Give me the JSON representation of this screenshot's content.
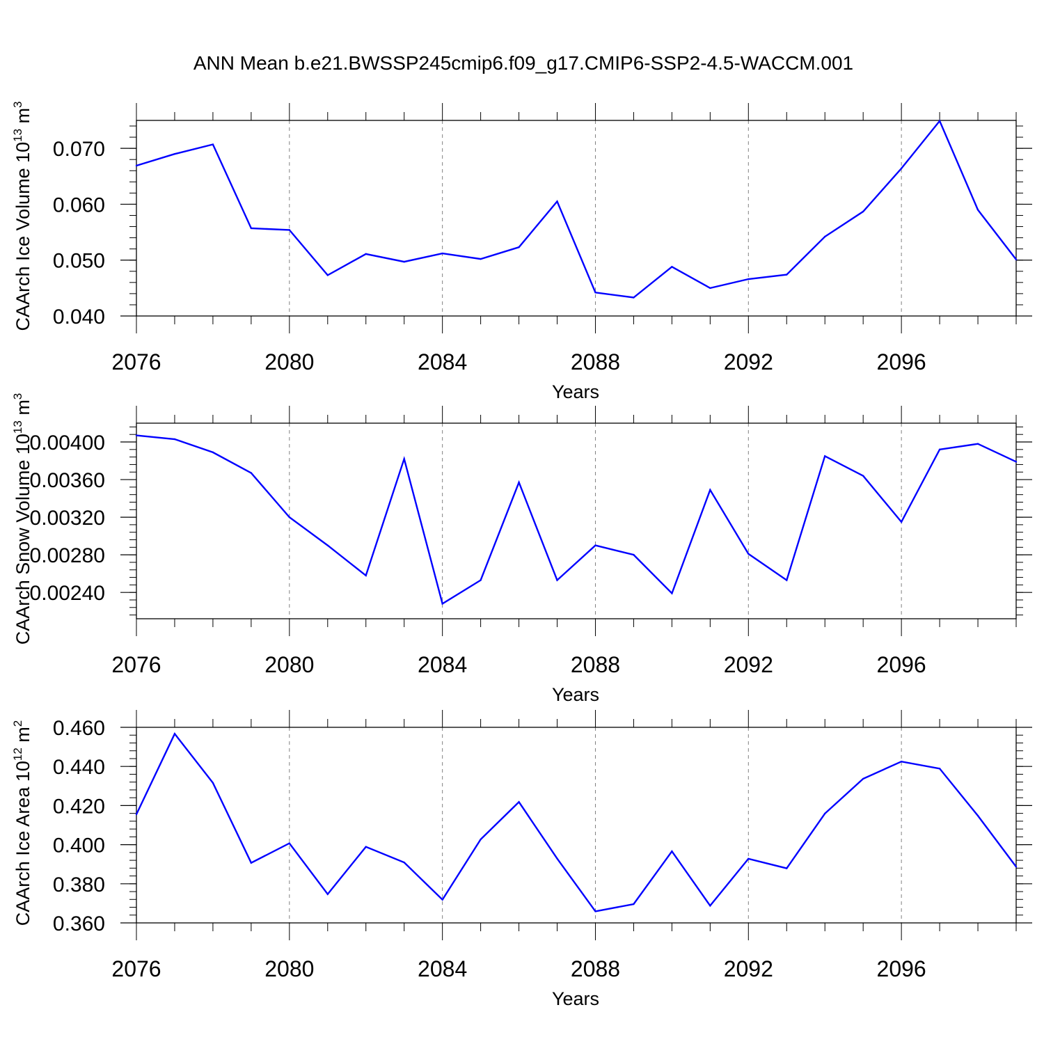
{
  "title": "ANN Mean b.e21.BWSSP245cmip6.f09_g17.CMIP6-SSP2-4.5-WACCM.001",
  "colors": {
    "line": "#0000ff",
    "axis": "#000000",
    "grid": "#808080"
  },
  "chart_data": [
    {
      "type": "line",
      "ylabel": {
        "text": "CAArch Ice Volume 10",
        "exp": "13",
        "unit": " m",
        "unit_exp": "3"
      },
      "xlabel": "Years",
      "xlim": [
        2076,
        2099
      ],
      "ylim": [
        0.04,
        0.075
      ],
      "yticks": [
        0.04,
        0.05,
        0.06,
        0.07
      ],
      "ytick_labels": [
        "0.040",
        "0.050",
        "0.060",
        "0.070"
      ],
      "xticks": [
        2076,
        2080,
        2084,
        2088,
        2092,
        2096
      ],
      "xtick_labels": [
        "2076",
        "2080",
        "2084",
        "2088",
        "2092",
        "2096"
      ],
      "x": [
        2076,
        2077,
        2078,
        2079,
        2080,
        2081,
        2082,
        2083,
        2084,
        2085,
        2086,
        2087,
        2088,
        2089,
        2090,
        2091,
        2092,
        2093,
        2094,
        2095,
        2096,
        2097,
        2098,
        2099
      ],
      "values": [
        0.0669,
        0.069,
        0.0707,
        0.0557,
        0.0554,
        0.0473,
        0.0511,
        0.0497,
        0.0512,
        0.0502,
        0.0523,
        0.0605,
        0.0442,
        0.0433,
        0.0488,
        0.045,
        0.0466,
        0.0474,
        0.0542,
        0.0587,
        0.0664,
        0.0749,
        0.059,
        0.0501
      ]
    },
    {
      "type": "line",
      "ylabel": {
        "text": "CAArch Snow Volume 10",
        "exp": "13",
        "unit": " m",
        "unit_exp": "3"
      },
      "xlabel": "Years",
      "xlim": [
        2076,
        2099
      ],
      "ylim": [
        0.00212,
        0.0042
      ],
      "yticks": [
        0.0024,
        0.0028,
        0.0032,
        0.0036,
        0.004
      ],
      "ytick_labels": [
        "0.00240",
        "0.00280",
        "0.00320",
        "0.00360",
        "0.00400"
      ],
      "xticks": [
        2076,
        2080,
        2084,
        2088,
        2092,
        2096
      ],
      "xtick_labels": [
        "2076",
        "2080",
        "2084",
        "2088",
        "2092",
        "2096"
      ],
      "x": [
        2076,
        2077,
        2078,
        2079,
        2080,
        2081,
        2082,
        2083,
        2084,
        2085,
        2086,
        2087,
        2088,
        2089,
        2090,
        2091,
        2092,
        2093,
        2094,
        2095,
        2096,
        2097,
        2098,
        2099
      ],
      "values": [
        0.00407,
        0.00403,
        0.00389,
        0.00367,
        0.0032,
        0.0029,
        0.00258,
        0.00382,
        0.00228,
        0.00253,
        0.00357,
        0.00253,
        0.0029,
        0.0028,
        0.00239,
        0.00349,
        0.00281,
        0.00253,
        0.00385,
        0.00364,
        0.00315,
        0.00392,
        0.00398,
        0.00379
      ]
    },
    {
      "type": "line",
      "ylabel": {
        "text": "CAArch Ice Area 10",
        "exp": "12",
        "unit": " m",
        "unit_exp": "2"
      },
      "xlabel": "Years",
      "xlim": [
        2076,
        2099
      ],
      "ylim": [
        0.36,
        0.46
      ],
      "yticks": [
        0.36,
        0.38,
        0.4,
        0.42,
        0.44,
        0.46
      ],
      "ytick_labels": [
        "0.360",
        "0.380",
        "0.400",
        "0.420",
        "0.440",
        "0.460"
      ],
      "xticks": [
        2076,
        2080,
        2084,
        2088,
        2092,
        2096
      ],
      "xtick_labels": [
        "2076",
        "2080",
        "2084",
        "2088",
        "2092",
        "2096"
      ],
      "x": [
        2076,
        2077,
        2078,
        2079,
        2080,
        2081,
        2082,
        2083,
        2084,
        2085,
        2086,
        2087,
        2088,
        2089,
        2090,
        2091,
        2092,
        2093,
        2094,
        2095,
        2096,
        2097,
        2098,
        2099
      ],
      "values": [
        0.4155,
        0.4567,
        0.4316,
        0.3907,
        0.4007,
        0.3747,
        0.3989,
        0.3909,
        0.3719,
        0.4027,
        0.4218,
        0.3929,
        0.3659,
        0.3696,
        0.3966,
        0.3688,
        0.3928,
        0.3879,
        0.4159,
        0.4337,
        0.4425,
        0.4389,
        0.4148,
        0.3887
      ]
    }
  ]
}
